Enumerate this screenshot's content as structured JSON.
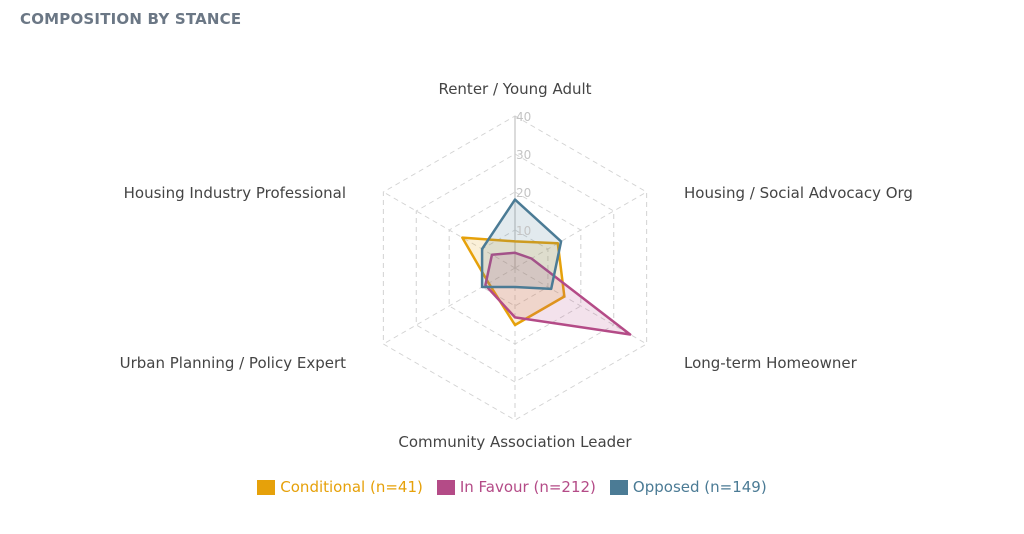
{
  "panel": {
    "title": "COMPOSITION BY STANCE"
  },
  "chart_data": {
    "type": "radar",
    "axes": [
      "Renter / Young Adult",
      "Housing / Social Advocacy Org",
      "Long-term Homeowner",
      "Community Association Leader",
      "Urban Planning / Policy Expert",
      "Housing Industry Professional"
    ],
    "rlim": [
      0,
      40
    ],
    "ticks": [
      10,
      20,
      30,
      40
    ],
    "grid": true,
    "legend_position": "bottom",
    "series": [
      {
        "name": "Conditional (n=41)",
        "color": "#e6a10a",
        "values": [
          7,
          13,
          15,
          15,
          8,
          16
        ]
      },
      {
        "name": "In Favour (n=212)",
        "color": "#b44b87",
        "values": [
          4,
          5,
          35,
          13,
          9,
          7
        ]
      },
      {
        "name": "Opposed (n=149)",
        "color": "#4b7b95",
        "values": [
          18,
          14,
          11,
          5,
          10,
          10
        ]
      }
    ]
  }
}
